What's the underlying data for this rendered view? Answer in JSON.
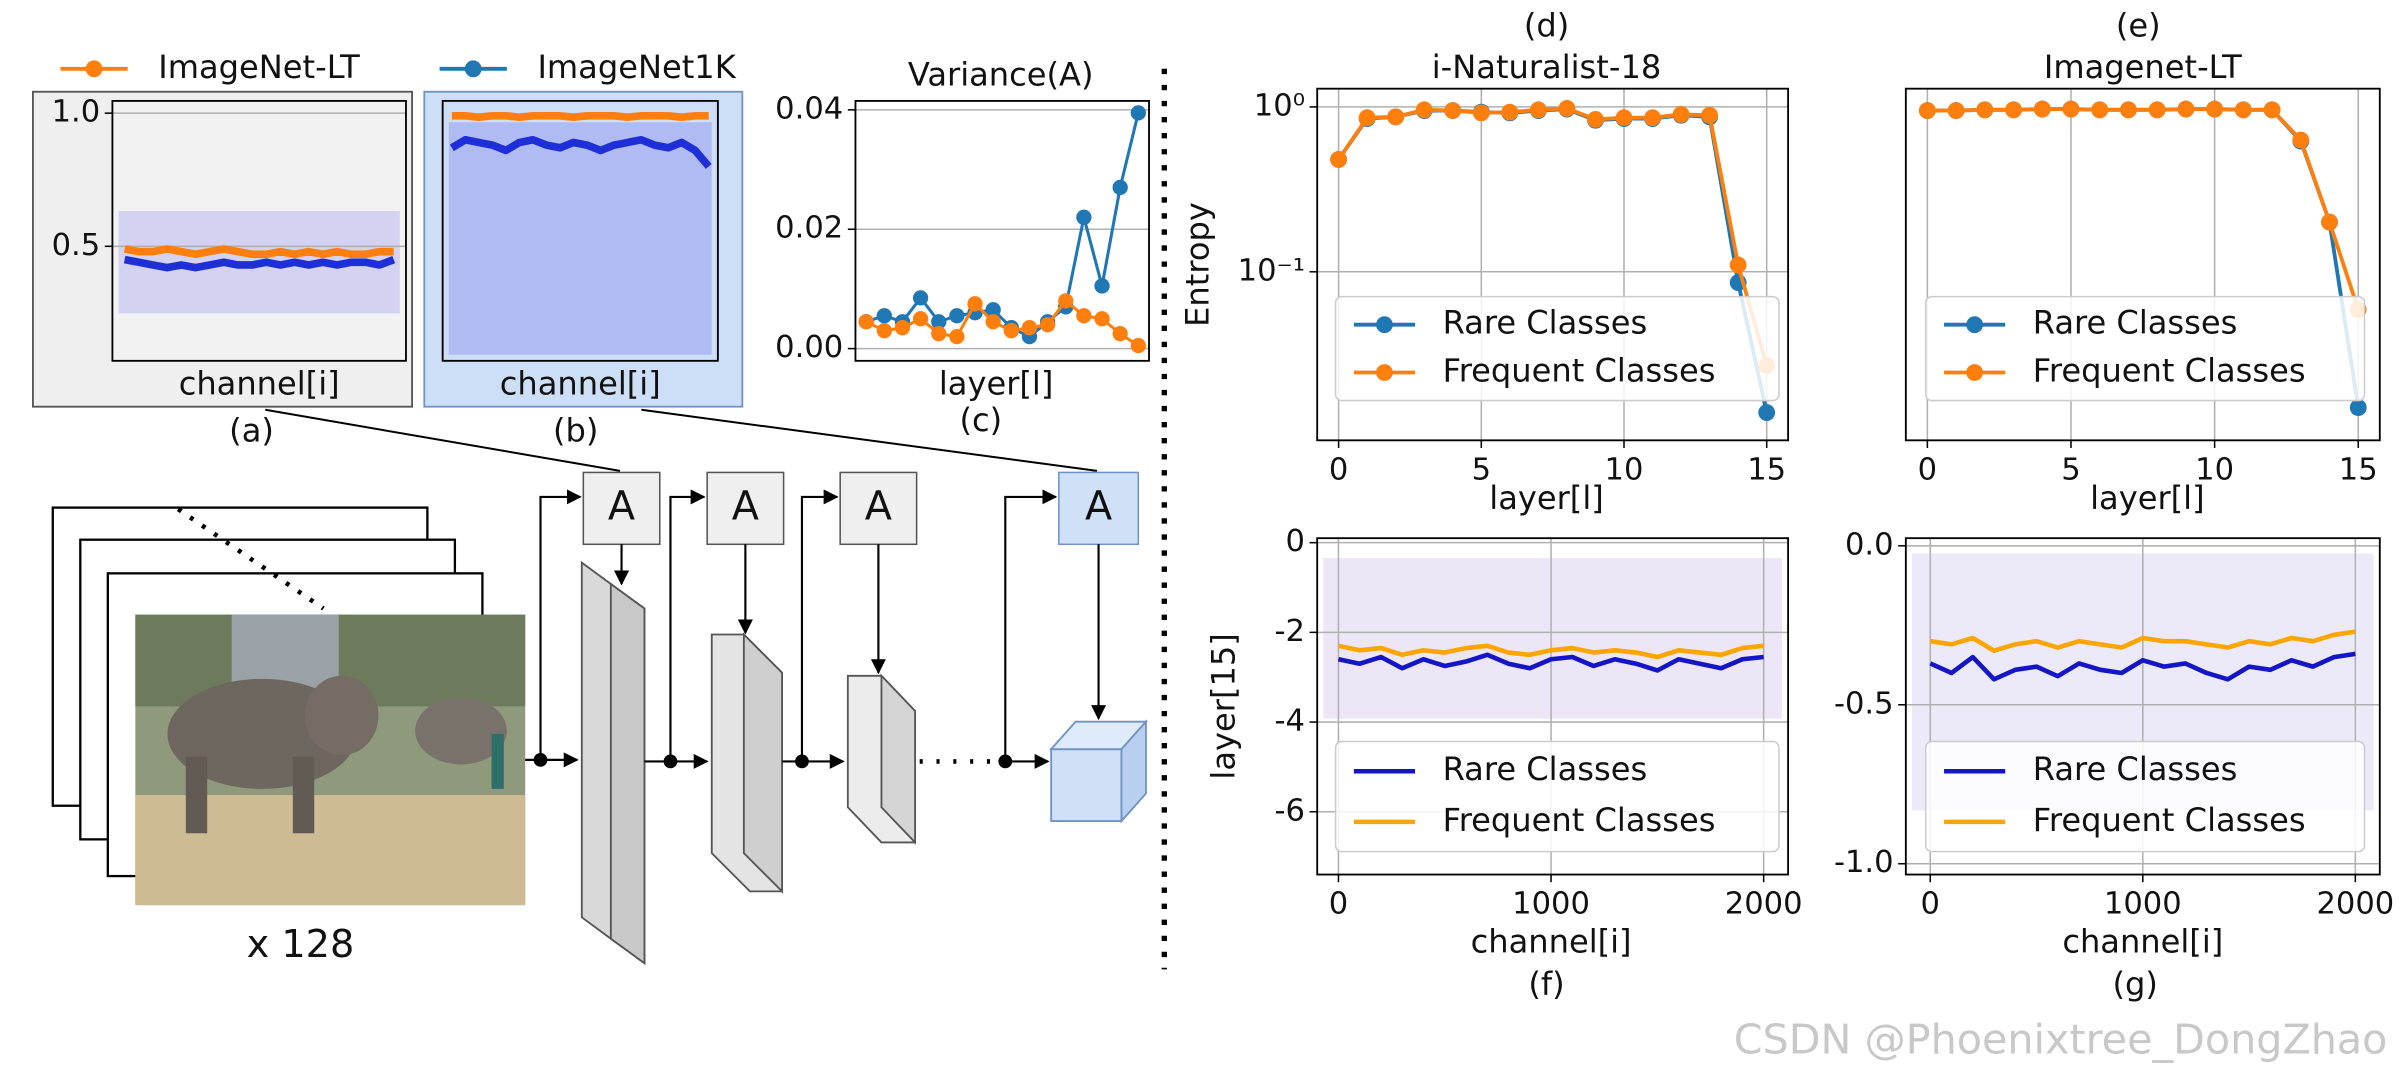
{
  "chart_data": [
    {
      "type": "line",
      "caption": "(a)",
      "xlabel": "channel[i]",
      "ylim": [
        0.07,
        1.046
      ],
      "yticks": [
        {
          "value": 1,
          "label": "1.0"
        },
        0.5
      ],
      "grid": true,
      "markers": false,
      "series": [
        {
          "name": "ImageNet-LT",
          "color": "#ff7f0e",
          "values": [
            0.49,
            0.48,
            0.48,
            0.49,
            0.48,
            0.47,
            0.48,
            0.49,
            0.48,
            0.47,
            0.47,
            0.48,
            0.47,
            0.48,
            0.47,
            0.48,
            0.47,
            0.47,
            0.48,
            0.48
          ]
        },
        {
          "name": "ImageNet1K",
          "color": "#1f2fd8",
          "values": [
            0.45,
            0.44,
            0.43,
            0.42,
            0.43,
            0.42,
            0.43,
            0.44,
            0.43,
            0.43,
            0.44,
            0.43,
            0.44,
            0.43,
            0.44,
            0.43,
            0.44,
            0.44,
            0.43,
            0.45
          ]
        }
      ]
    },
    {
      "type": "line",
      "caption": "(b)",
      "xlabel": "channel[i]",
      "ylim": [
        0.07,
        1.046
      ],
      "markers": false,
      "series": [
        {
          "color": "#ff7f0e",
          "values": [
            0.99,
            0.99,
            0.985,
            0.99,
            0.99,
            0.985,
            0.99,
            0.99,
            0.99,
            0.985,
            0.99,
            0.99,
            0.99,
            0.985,
            0.99,
            0.99,
            0.99,
            0.985,
            0.99,
            0.99
          ]
        },
        {
          "color": "#1f2fd8",
          "values": [
            0.87,
            0.9,
            0.89,
            0.88,
            0.86,
            0.89,
            0.9,
            0.88,
            0.87,
            0.89,
            0.88,
            0.86,
            0.88,
            0.89,
            0.9,
            0.88,
            0.87,
            0.89,
            0.86,
            0.8
          ]
        }
      ]
    },
    {
      "type": "line",
      "title": "Variance(A)",
      "caption": "(c)",
      "xlabel": "layer[l]",
      "ylim": [
        -0.00205,
        0.0415
      ],
      "yticks": [
        {
          "value": 0,
          "label": "0.00"
        },
        0.02,
        0.04
      ],
      "grid": true,
      "markers": true,
      "series": [
        {
          "color": "#1f77b4",
          "values": [
            0.0045,
            0.0055,
            0.0045,
            0.0085,
            0.0045,
            0.0055,
            0.006,
            0.0065,
            0.0035,
            0.002,
            0.0045,
            0.007,
            0.022,
            0.0105,
            0.027,
            0.0395
          ]
        },
        {
          "color": "#ff7f0e",
          "values": [
            0.0045,
            0.003,
            0.0035,
            0.005,
            0.0025,
            0.002,
            0.0075,
            0.0045,
            0.003,
            0.0035,
            0.004,
            0.008,
            0.0055,
            0.005,
            0.0025,
            0.0005
          ]
        }
      ]
    },
    {
      "type": "line",
      "label": "(d)",
      "title": "i-Naturalist-18",
      "ylabel": "Entropy",
      "xlabel": "layer[l]",
      "log": true,
      "ylim": [
        0.0095,
        1.29
      ],
      "yticks": [
        {
          "value": 1,
          "label": "10⁰"
        },
        {
          "value": 0.1,
          "label": "10⁻¹"
        }
      ],
      "xlim": [
        -0.75,
        15.75
      ],
      "xticks": [
        0,
        5,
        10,
        15
      ],
      "grid": true,
      "markers": true,
      "legend": "lower center",
      "x": [
        0,
        1,
        2,
        3,
        4,
        5,
        6,
        7,
        8,
        9,
        10,
        11,
        12,
        13,
        14,
        15
      ],
      "series": [
        {
          "name": "Rare Classes",
          "color": "#1f77b4",
          "values": [
            0.48,
            0.85,
            0.87,
            0.95,
            0.95,
            0.93,
            0.92,
            0.95,
            0.97,
            0.83,
            0.85,
            0.85,
            0.89,
            0.87,
            0.086,
            0.014
          ]
        },
        {
          "name": "Frequent Classes",
          "color": "#ff7f0e",
          "values": [
            0.48,
            0.86,
            0.87,
            0.96,
            0.95,
            0.92,
            0.93,
            0.96,
            0.98,
            0.84,
            0.86,
            0.86,
            0.9,
            0.89,
            0.11,
            0.027
          ]
        }
      ]
    },
    {
      "type": "line",
      "label": "(e)",
      "title": "Imagenet-LT",
      "xlabel": "layer[l]",
      "log": true,
      "ylim": [
        0.0095,
        1.29
      ],
      "xlim": [
        -0.75,
        15.75
      ],
      "xticks": [
        0,
        5,
        10,
        15
      ],
      "grid": true,
      "markers": true,
      "legend": "lower center",
      "x": [
        0,
        1,
        2,
        3,
        4,
        5,
        6,
        7,
        8,
        9,
        10,
        11,
        12,
        13,
        14,
        15
      ],
      "series": [
        {
          "name": "Rare Classes",
          "color": "#1f77b4",
          "values": [
            0.95,
            0.95,
            0.96,
            0.96,
            0.97,
            0.97,
            0.96,
            0.96,
            0.96,
            0.97,
            0.97,
            0.96,
            0.96,
            0.62,
            0.2,
            0.015
          ]
        },
        {
          "name": "Frequent Classes",
          "color": "#ff7f0e",
          "values": [
            0.95,
            0.95,
            0.96,
            0.96,
            0.97,
            0.97,
            0.96,
            0.96,
            0.96,
            0.97,
            0.97,
            0.96,
            0.96,
            0.63,
            0.2,
            0.059
          ]
        }
      ]
    },
    {
      "type": "line",
      "caption": "(f)",
      "ylabel": "layer[15]",
      "xlabel": "channel[i]",
      "ylim": [
        -7.4,
        0.1
      ],
      "yticks": [
        0,
        -2,
        -4,
        -6
      ],
      "xlim": [
        -100,
        2115
      ],
      "xticks": [
        0,
        1000,
        2000
      ],
      "grid": true,
      "markers": false,
      "legend": "lower center",
      "x": [
        0,
        100,
        200,
        300,
        400,
        500,
        600,
        700,
        800,
        900,
        1000,
        1100,
        1200,
        1300,
        1400,
        1500,
        1600,
        1700,
        1800,
        1900,
        2000
      ],
      "series": [
        {
          "name": "Rare Classes",
          "color": "#1515c8",
          "values": [
            -2.6,
            -2.7,
            -2.55,
            -2.8,
            -2.6,
            -2.75,
            -2.65,
            -2.5,
            -2.7,
            -2.8,
            -2.6,
            -2.55,
            -2.75,
            -2.6,
            -2.7,
            -2.85,
            -2.6,
            -2.7,
            -2.8,
            -2.6,
            -2.55
          ]
        },
        {
          "name": "Frequent Classes",
          "color": "#ffa500",
          "values": [
            -2.3,
            -2.4,
            -2.35,
            -2.5,
            -2.4,
            -2.45,
            -2.35,
            -2.3,
            -2.45,
            -2.5,
            -2.4,
            -2.35,
            -2.45,
            -2.4,
            -2.45,
            -2.55,
            -2.4,
            -2.45,
            -2.5,
            -2.35,
            -2.3
          ]
        }
      ]
    },
    {
      "type": "line",
      "caption": "(g)",
      "xlabel": "channel[i]",
      "ylim": [
        -1.034,
        0.024
      ],
      "yticks": [
        {
          "value": 0,
          "label": "0.0"
        },
        -0.5,
        {
          "value": -1,
          "label": "-1.0"
        }
      ],
      "xlim": [
        -115,
        2115
      ],
      "xticks": [
        0,
        1000,
        2000
      ],
      "grid": true,
      "markers": false,
      "legend": "lower center",
      "x": [
        0,
        100,
        200,
        300,
        400,
        500,
        600,
        700,
        800,
        900,
        1000,
        1100,
        1200,
        1300,
        1400,
        1500,
        1600,
        1700,
        1800,
        1900,
        2000
      ],
      "series": [
        {
          "name": "Rare Classes",
          "color": "#1515c8",
          "values": [
            -0.37,
            -0.4,
            -0.35,
            -0.42,
            -0.39,
            -0.38,
            -0.41,
            -0.37,
            -0.39,
            -0.4,
            -0.36,
            -0.38,
            -0.37,
            -0.4,
            -0.42,
            -0.38,
            -0.39,
            -0.36,
            -0.38,
            -0.35,
            -0.34
          ]
        },
        {
          "name": "Frequent Classes",
          "color": "#ffa500",
          "values": [
            -0.3,
            -0.31,
            -0.29,
            -0.33,
            -0.31,
            -0.3,
            -0.32,
            -0.3,
            -0.31,
            -0.32,
            -0.29,
            -0.3,
            -0.3,
            -0.31,
            -0.32,
            -0.3,
            -0.31,
            -0.29,
            -0.3,
            -0.28,
            -0.27
          ]
        }
      ]
    }
  ],
  "diagram": {
    "blocks": [
      "A",
      "A",
      "A",
      "A"
    ],
    "batch": "x 128"
  },
  "watermark": "CSDN @Phoenixtree_DongZhao"
}
